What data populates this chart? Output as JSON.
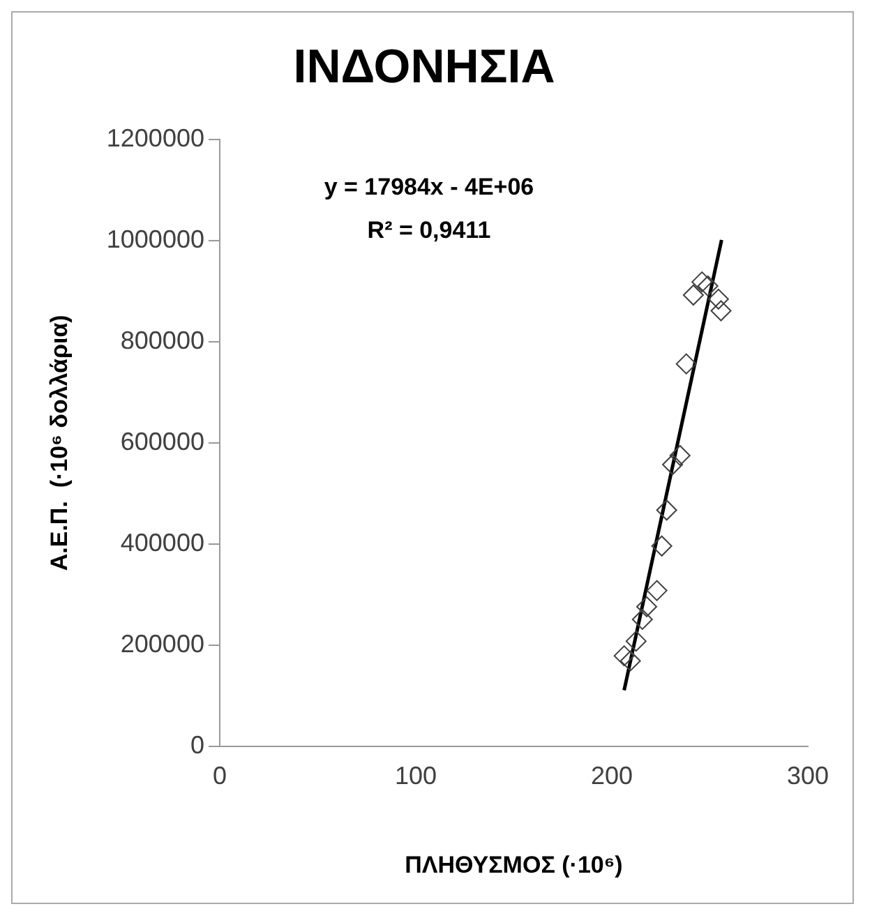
{
  "chart_data": {
    "type": "scatter",
    "title": "ΙΝΔΟΝΗΣΙΑ",
    "xlabel": "ΠΛΗΘΥΣΜΟΣ (·10⁶)",
    "ylabel": "Α.Ε.Π.  (·10⁶ δολλάρια)",
    "annotations": [
      "y = 17984x - 4E+06",
      "R² = 0,9411"
    ],
    "xlim": [
      0,
      300
    ],
    "xticks": [
      0,
      100,
      200,
      300
    ],
    "ylim": [
      0,
      1200000
    ],
    "yticks": [
      0,
      200000,
      400000,
      600000,
      800000,
      1000000,
      1200000
    ],
    "grid": false,
    "legend": false,
    "marker": "diamond",
    "series": [
      {
        "color": "#404040",
        "x": [
          206.3,
          209.5,
          212.4,
          215.6,
          217.8,
          223,
          225.5,
          228,
          231,
          234.8,
          238,
          241.6,
          246,
          249,
          254.4,
          255.7
        ],
        "values": [
          179000,
          169000,
          208000,
          251000,
          276000,
          308000,
          396000,
          467000,
          557000,
          575000,
          756000,
          892000,
          918000,
          910000,
          884000,
          861000
        ]
      },
      {
        "type": "line",
        "color": "#000000",
        "marker": "none",
        "x": [
          206.3,
          256
        ],
        "values": [
          111000,
          1001000
        ]
      }
    ]
  }
}
